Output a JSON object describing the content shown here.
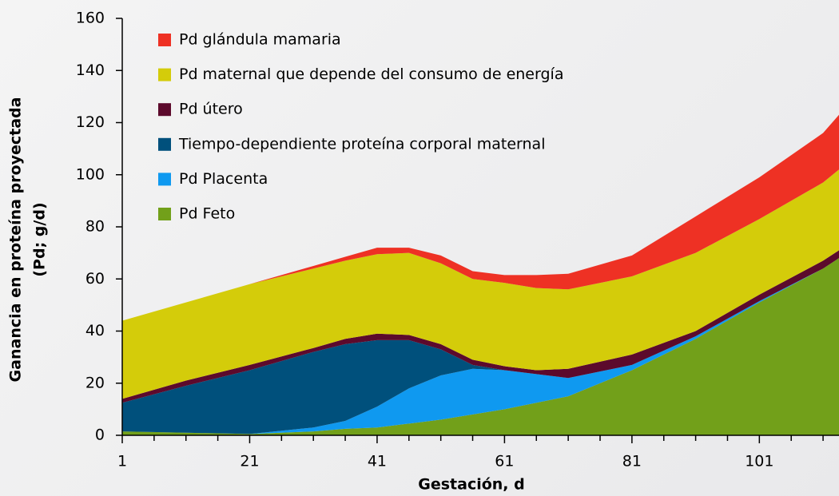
{
  "chart_data": {
    "type": "stacked_area",
    "xlabel": "Gestación, d",
    "ylabel": [
      "Ganancia en proteína proyectada",
      "(Pd; g/d)"
    ],
    "x": [
      1,
      11,
      21,
      31,
      36,
      41,
      46,
      51,
      56,
      61,
      66,
      71,
      81,
      91,
      101,
      111,
      113.5
    ],
    "series": [
      {
        "name": "Pd glándula mamaria",
        "color": "#ee3124",
        "values": [
          0,
          0,
          0,
          1,
          1.5,
          2.5,
          2,
          3,
          3,
          3,
          5,
          6,
          8,
          14,
          16,
          19,
          21
        ]
      },
      {
        "name": "Pd maternal que depende del consumo de energía",
        "color": "#d4cc0a",
        "values": [
          30,
          30,
          31,
          30.5,
          30,
          30.5,
          31.5,
          31,
          31,
          32,
          31.5,
          30.5,
          30,
          30,
          29,
          30,
          31
        ]
      },
      {
        "name": "Pd útero",
        "color": "#5c0a2c",
        "values": [
          1.5,
          2,
          2,
          1.5,
          2,
          2.5,
          2,
          2,
          2,
          1.5,
          1.5,
          3.5,
          4,
          2,
          2.5,
          3,
          3
        ]
      },
      {
        "name": "Tiempo-dependiente proteína corporal maternal",
        "color": "#00507c",
        "values": [
          11,
          18,
          24.5,
          29,
          29.5,
          25.5,
          18.5,
          10,
          1.5,
          0,
          0,
          0,
          0,
          0,
          0,
          0,
          0
        ]
      },
      {
        "name": "Pd Placenta",
        "color": "#0f99f0",
        "values": [
          0,
          0,
          0,
          1.5,
          3,
          8,
          13.5,
          17,
          17.5,
          15,
          11,
          7,
          2,
          1,
          0.5,
          0,
          0
        ]
      },
      {
        "name": "Pd Feto",
        "color": "#72a01a",
        "values": [
          1.5,
          1,
          0.5,
          1.5,
          2.5,
          3,
          4.5,
          6,
          8,
          10,
          12.5,
          15,
          25,
          37,
          51,
          64,
          68
        ]
      }
    ],
    "xlim": [
      1,
      113.5
    ],
    "xticks": [
      1,
      21,
      41,
      61,
      81,
      101
    ],
    "xminorticks": [
      6,
      11,
      16,
      26,
      31,
      36,
      46,
      51,
      56,
      66,
      71,
      76,
      86,
      91,
      96,
      106,
      111
    ],
    "ylim": [
      0,
      160
    ],
    "yticks": [
      0,
      20,
      40,
      60,
      80,
      100,
      120,
      140,
      160
    ],
    "legend": "top-left"
  }
}
